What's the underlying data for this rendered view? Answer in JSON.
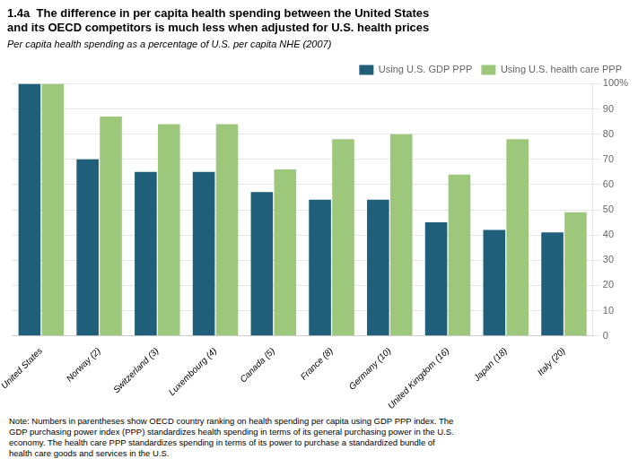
{
  "chart_data": {
    "type": "bar",
    "title": [
      "1.4a  The difference in per capita health spending between the United States",
      "and its OECD competitors is much less when adjusted for U.S. health prices"
    ],
    "subtitle": "Per capita health spending as a percentage of U.S. per capita NHE (2007)",
    "annotations": [
      "Note: Numbers in parentheses show OECD country ranking on health spending per capita using GDP PPP index. The\nGDP purchasing power index (PPP) standardizes health spending in terms of its general purchasing power in the U.S.\neconomy. The health care PPP standardizes spending in terms of its power to purchase a standardized bundle of\nhealth care goods and services in the U.S."
    ],
    "categories": [
      "United States",
      "Norway (2)",
      "Switzerland (3)",
      "Luxembourg (4)",
      "Canada (5)",
      "France (8)",
      "Germany (10)",
      "United Kingdom (16)",
      "Japan (18)",
      "Italy (20)"
    ],
    "series": [
      {
        "name": "Using U.S. GDP PPP",
        "color": "#1f5f7a",
        "values": [
          100,
          70,
          65,
          65,
          57,
          54,
          54,
          45,
          42,
          41
        ]
      },
      {
        "name": "Using U.S. health care PPP",
        "color": "#9dc77b",
        "values": [
          100,
          87,
          84,
          84,
          66,
          78,
          80,
          64,
          78,
          49
        ]
      }
    ],
    "ylim": [
      0,
      100
    ],
    "yticks": [
      0,
      10,
      20,
      30,
      40,
      50,
      60,
      70,
      80,
      90,
      {
        "value": 100,
        "label": "100%"
      }
    ],
    "grid": true,
    "legend": "upper right"
  }
}
